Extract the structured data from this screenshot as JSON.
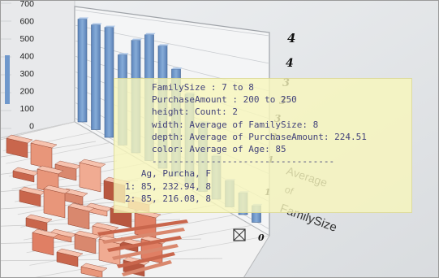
{
  "chart_data": {
    "type": "bar",
    "projection": "3d",
    "y_axis": {
      "ticks": [
        "700",
        "600",
        "500",
        "400",
        "300",
        "200",
        "100",
        "0"
      ],
      "ylim": [
        0,
        700
      ]
    },
    "depth_axis": {
      "ticks": [
        "4",
        "4",
        "3",
        "3",
        "3",
        "2",
        "1",
        "1",
        "0"
      ]
    },
    "depth_axis_label": [
      "Average",
      "of",
      "FamilySize"
    ],
    "colors": {
      "bar_blue": "#6f98cc",
      "heat_salmon": "#d9886e",
      "tooltip_bg": "#f8f6bc",
      "tooltip_text": "#42427a"
    },
    "series": [
      {
        "name": "",
        "values": [
          620,
          600,
          600,
          470,
          560,
          600,
          560,
          470,
          380,
          280,
          170,
          100,
          80,
          60
        ]
      }
    ],
    "heat_blocks": [
      {
        "heights": [
          18,
          26,
          14,
          30,
          22,
          12,
          8,
          24,
          10,
          6
        ]
      }
    ]
  },
  "tooltip": {
    "lines": [
      "FamilySize : 7 to 8",
      "PurchaseAmount : 200 to 250",
      "height: Count: 2",
      "width: Average of FamilySize: 8",
      "depth: Average of PurchaseAmount: 224.51",
      "color: Average of Age: 85",
      "----------------------------------",
      "   Ag, Purcha, F",
      "1: 85, 232.94, 8",
      "2: 85, 216.08, 8"
    ]
  },
  "toolbar_icon": "pin-icon"
}
